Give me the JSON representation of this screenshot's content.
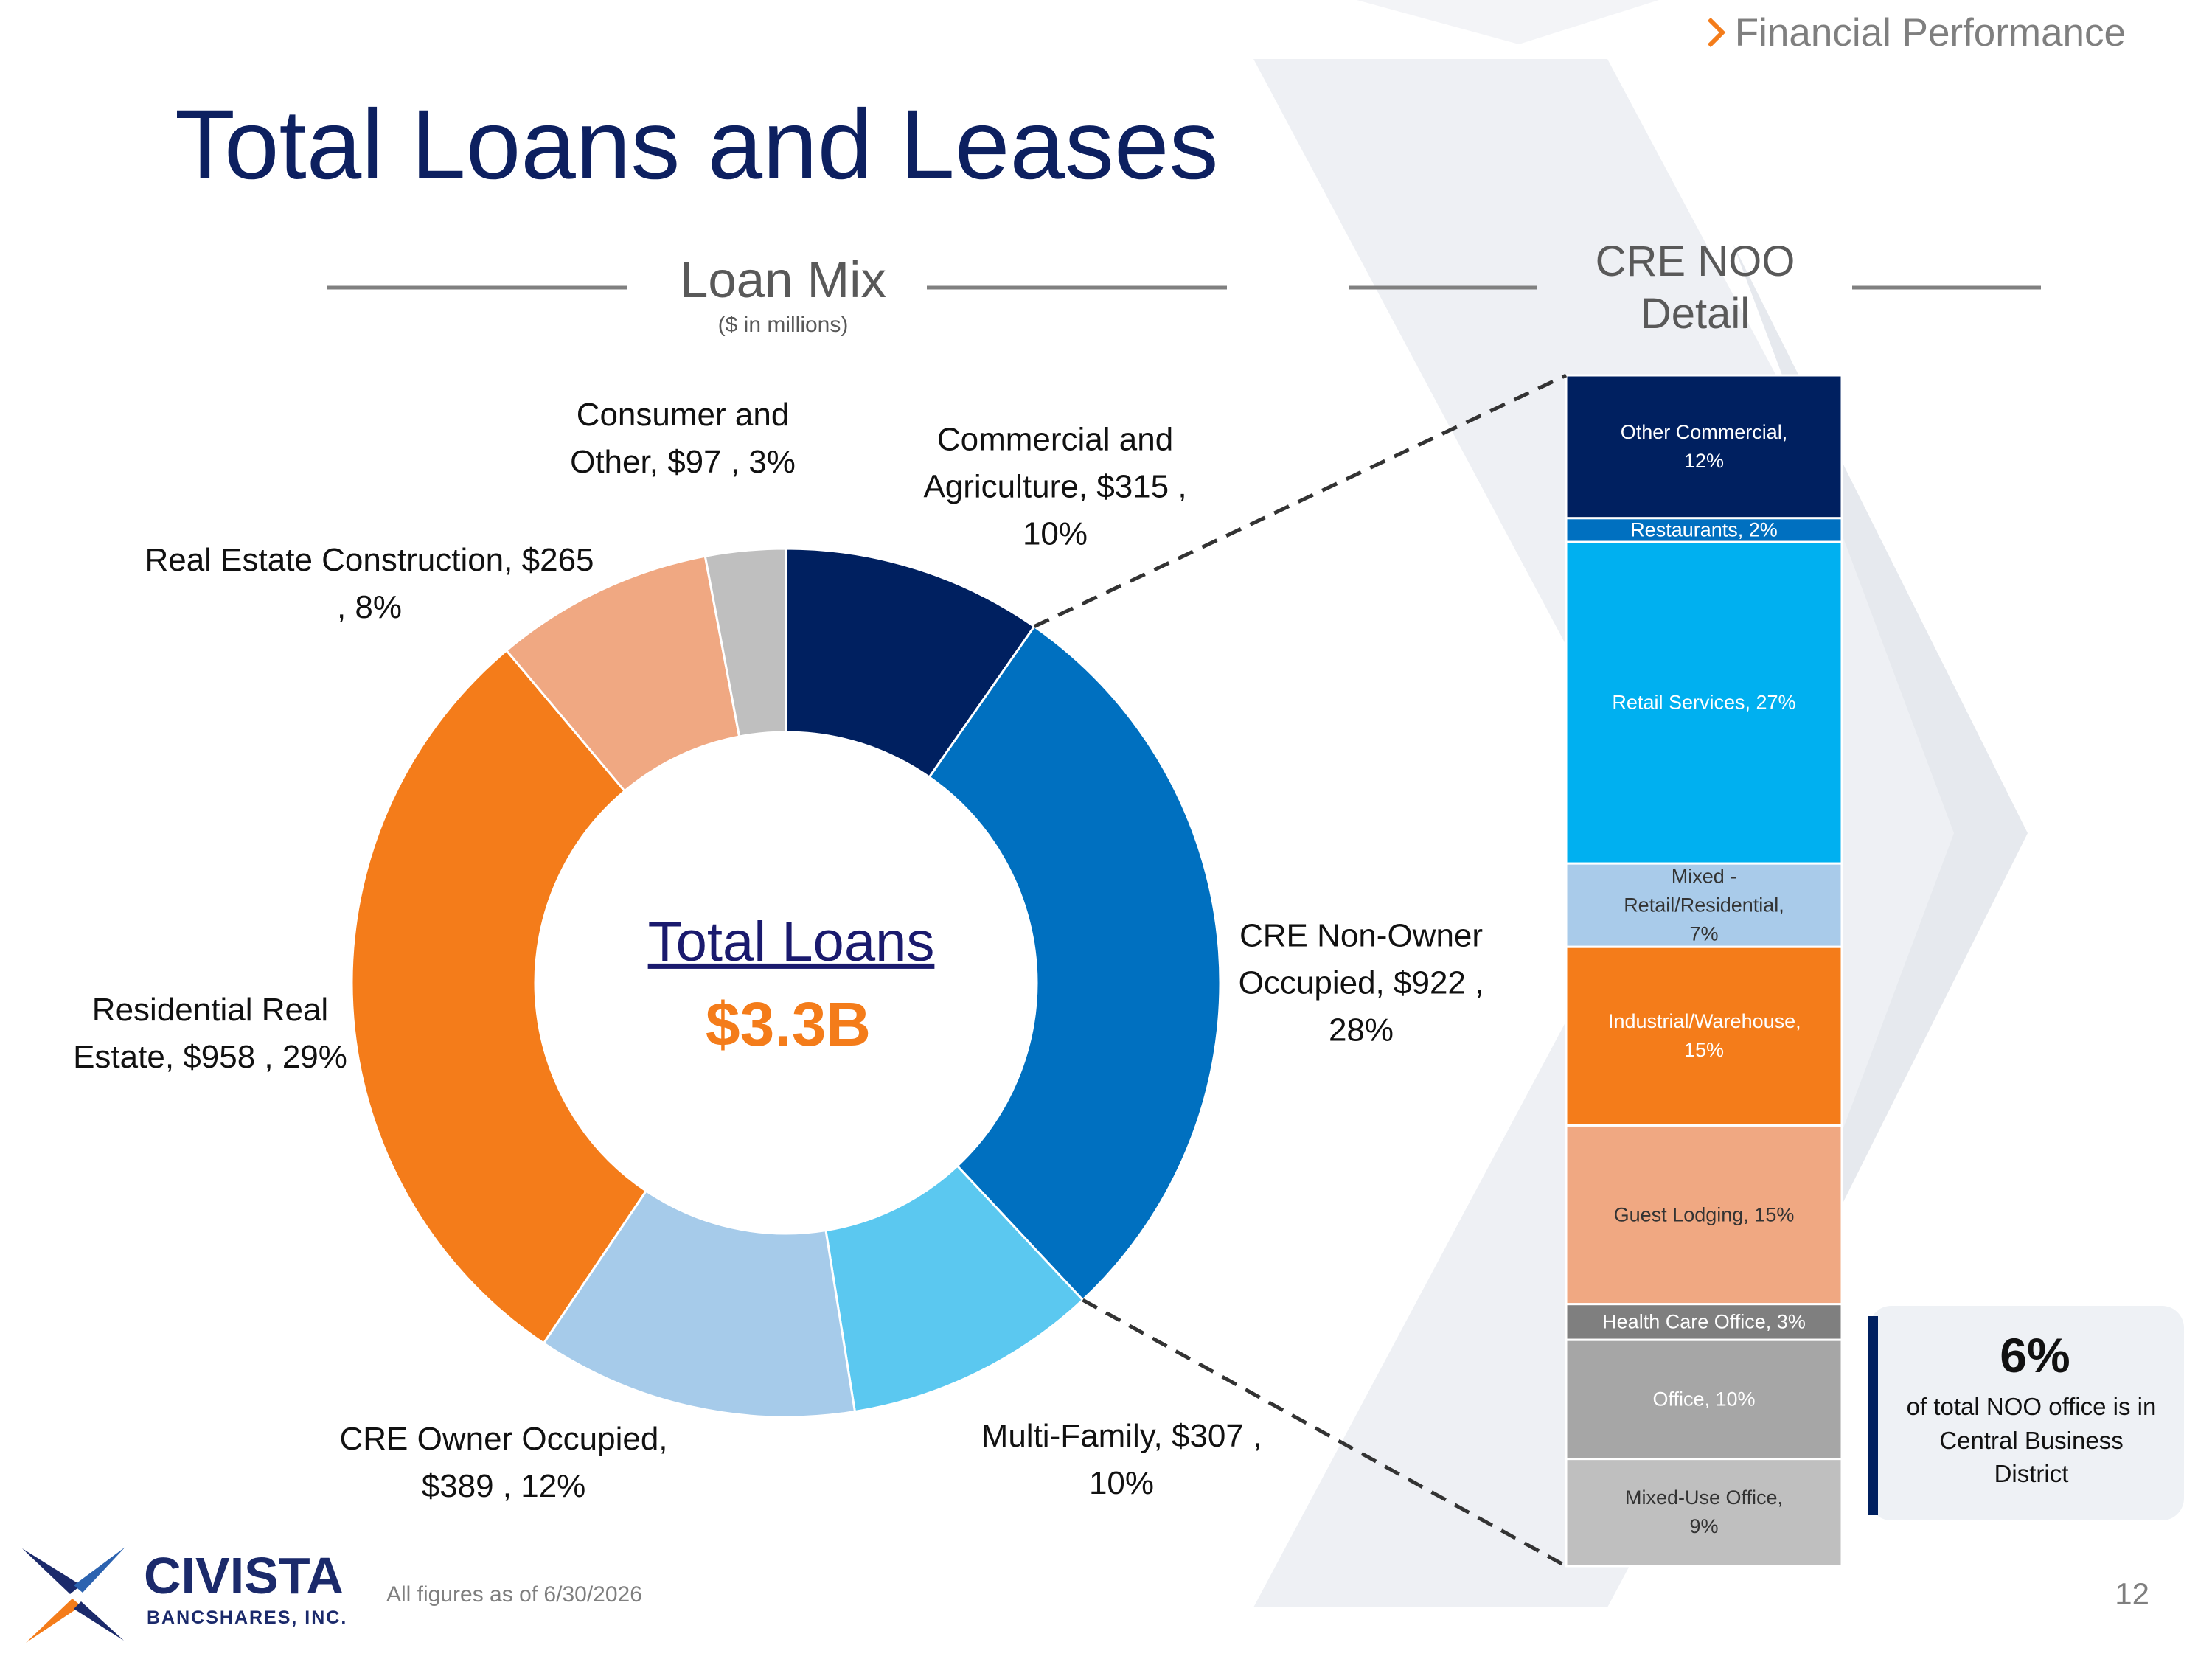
{
  "page": {
    "section": "Financial Performance",
    "title": "Total Loans and Leases",
    "footnote": "All figures as of 6/30/2026",
    "page_number": "12",
    "logo": {
      "name": "CIVISTA",
      "subtitle": "BANCSHARES, INC."
    },
    "callout": {
      "value": "6%",
      "text": "of total NOO office is in Central Business District"
    }
  },
  "chart_data": [
    {
      "type": "donut",
      "title": "Loan Mix",
      "subtitle": "($ in millions)",
      "center_label": "Total Loans",
      "center_value": "$3.3B",
      "categories": [
        "Commercial and Agriculture,",
        "CRE Non-Owner Occupied,",
        "Multi-Family,",
        "CRE Owner Occupied,",
        "Residential Real Estate,",
        "Real Estate Construction,",
        "Consumer and Other,"
      ],
      "values": [
        315,
        922,
        307,
        389,
        958,
        265,
        97
      ],
      "value_labels": [
        "$315 , 10%",
        "$922 , 28%",
        "$307 , 10%",
        "$389 , 12%",
        "$958 , 29%",
        "$265 , 8%",
        "$97 , 3%"
      ],
      "colors": [
        "#002060",
        "#0070c0",
        "#5bc8f0",
        "#a6cbea",
        "#f47c1a",
        "#f0a882",
        "#bfbfbf"
      ]
    },
    {
      "type": "stacked_bar",
      "title": "CRE NOO Detail",
      "ylim": [
        0,
        100
      ],
      "series": [
        {
          "name": "Other Commercial,",
          "color": "#002060",
          "values": [
            12
          ],
          "value_labels": [
            "12%"
          ]
        },
        {
          "name": "Restaurants,",
          "color": "#0070c0",
          "values": [
            2
          ],
          "value_labels": [
            "2%"
          ]
        },
        {
          "name": "Retail Services,",
          "color": "#00b0f0",
          "values": [
            27
          ],
          "value_labels": [
            "27%"
          ]
        },
        {
          "name": "Mixed - Retail/Residential,",
          "color": "#a9cbea",
          "values": [
            7
          ],
          "value_labels": [
            "7%"
          ]
        },
        {
          "name": "Industrial/Warehouse,",
          "color": "#f47c1a",
          "values": [
            15
          ],
          "value_labels": [
            "15%"
          ]
        },
        {
          "name": "Guest Lodging,",
          "color": "#f0a882",
          "values": [
            15
          ],
          "value_labels": [
            "15%"
          ]
        },
        {
          "name": "Health Care Office,",
          "color": "#7f7f7f",
          "values": [
            3
          ],
          "value_labels": [
            "3%"
          ]
        },
        {
          "name": "Office,",
          "color": "#a6a6a6",
          "values": [
            10
          ],
          "value_labels": [
            "10%"
          ]
        },
        {
          "name": "Mixed-Use Office,",
          "color": "#bfbfbf",
          "values": [
            9
          ],
          "value_labels": [
            "9%"
          ]
        }
      ]
    }
  ]
}
